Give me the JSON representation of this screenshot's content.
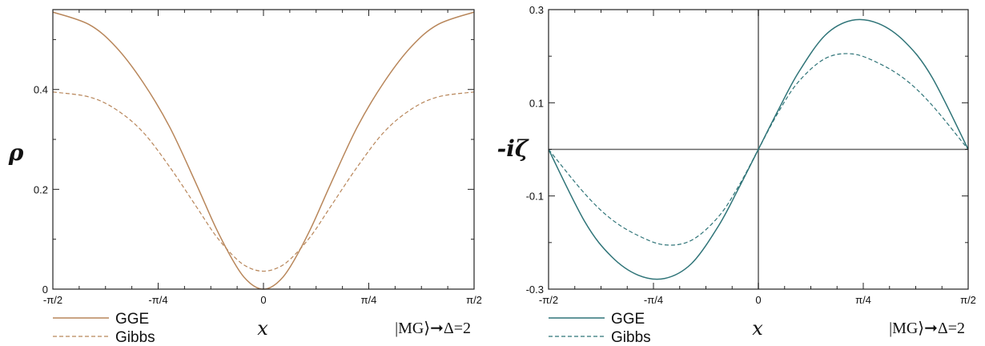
{
  "colors": {
    "left_series": "#b8865a",
    "right_series": "#2f7478",
    "axis": "#222222",
    "zero_line": "#666666"
  },
  "chart_data": [
    {
      "type": "line",
      "ylabel": "ρ",
      "xlabel": "x",
      "annotation": "|MG⟩➞Δ=2",
      "xlim": [
        -1.5708,
        1.5708
      ],
      "ylim": [
        0,
        0.56
      ],
      "x_tick_labels": [
        "-π/2",
        "-π/4",
        "0",
        "π/4",
        "π/2"
      ],
      "x_tick_values": [
        -1.5708,
        -0.7854,
        0,
        0.7854,
        1.5708
      ],
      "y_tick_labels": [
        "0",
        "0.2",
        "0.4"
      ],
      "y_tick_values": [
        0,
        0.2,
        0.4
      ],
      "grid": false,
      "legend_position": "bottom-left",
      "x": [
        -1.5708,
        -1.3,
        -1.1,
        -0.9,
        -0.7,
        -0.5,
        -0.35,
        -0.2,
        -0.1,
        0,
        0.1,
        0.2,
        0.35,
        0.5,
        0.7,
        0.9,
        1.1,
        1.3,
        1.5708
      ],
      "series": [
        {
          "name": "GGE",
          "style": "solid",
          "values": [
            0.555,
            0.53,
            0.485,
            0.415,
            0.325,
            0.21,
            0.12,
            0.045,
            0.012,
            0.0,
            0.012,
            0.045,
            0.12,
            0.21,
            0.325,
            0.415,
            0.485,
            0.53,
            0.555
          ]
        },
        {
          "name": "Gibbs",
          "style": "dashed",
          "values": [
            0.395,
            0.385,
            0.36,
            0.315,
            0.245,
            0.165,
            0.105,
            0.06,
            0.042,
            0.036,
            0.042,
            0.06,
            0.105,
            0.165,
            0.245,
            0.315,
            0.36,
            0.385,
            0.395
          ]
        }
      ]
    },
    {
      "type": "line",
      "ylabel": "-iζ",
      "xlabel": "x",
      "annotation": "|MG⟩➞Δ=2",
      "xlim": [
        -1.5708,
        1.5708
      ],
      "ylim": [
        -0.3,
        0.3
      ],
      "x_tick_labels": [
        "-π/2",
        "-π/4",
        "0",
        "π/4",
        "π/2"
      ],
      "x_tick_values": [
        -1.5708,
        -0.7854,
        0,
        0.7854,
        1.5708
      ],
      "y_tick_labels": [
        "-0.3",
        "-0.1",
        "0.1",
        "0.3"
      ],
      "y_tick_values": [
        -0.3,
        -0.1,
        0.1,
        0.3
      ],
      "grid": false,
      "zero_lines": true,
      "legend_position": "bottom-left",
      "x": [
        -1.5708,
        -1.3,
        -1.1,
        -0.9,
        -0.7,
        -0.5,
        -0.3,
        -0.15,
        0,
        0.15,
        0.3,
        0.5,
        0.7,
        0.9,
        1.1,
        1.3,
        1.5708
      ],
      "series": [
        {
          "name": "GGE",
          "style": "solid",
          "values": [
            0.0,
            -0.155,
            -0.23,
            -0.27,
            -0.277,
            -0.245,
            -0.165,
            -0.085,
            0.0,
            0.085,
            0.165,
            0.245,
            0.277,
            0.27,
            0.23,
            0.155,
            0.0
          ]
        },
        {
          "name": "Gibbs",
          "style": "dashed",
          "values": [
            0.0,
            -0.095,
            -0.15,
            -0.185,
            -0.205,
            -0.195,
            -0.145,
            -0.08,
            0.0,
            0.08,
            0.145,
            0.195,
            0.205,
            0.185,
            0.15,
            0.095,
            0.0
          ]
        }
      ]
    }
  ]
}
